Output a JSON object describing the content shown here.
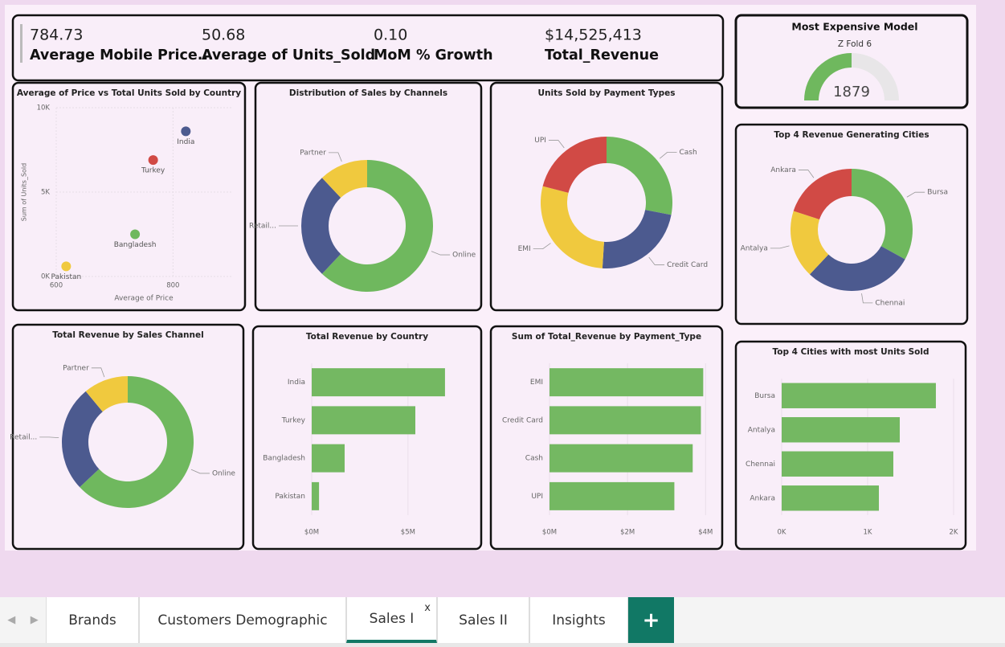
{
  "kpis": [
    {
      "value": "784.73",
      "label": "Average Mobile Price..."
    },
    {
      "value": "50.68",
      "label": "Average of Units_Sold"
    },
    {
      "value": "0.10",
      "label": "MoM % Growth"
    },
    {
      "value": "$14,525,413",
      "label": "Total_Revenue"
    }
  ],
  "gauge": {
    "title": "Most Expensive Model",
    "subtitle": "Z Fold 6",
    "value": 1879
  },
  "chart_data": [
    {
      "type": "scatter",
      "title": "Average of Price vs Total Units Sold by Country",
      "x_label": "Average of Price",
      "y_label": "Sum of Units_Sold",
      "categories": [
        "India",
        "Turkey",
        "Bangladesh",
        "Pakistan"
      ],
      "x": [
        822,
        766,
        735,
        617
      ],
      "values": [
        8600,
        6900,
        2500,
        600
      ],
      "colors": [
        "#4c5a8f",
        "#d14a45",
        "#6fb85e",
        "#f0c93e"
      ],
      "xlim": [
        600,
        900
      ],
      "xticks": [
        600,
        800
      ],
      "ylim": [
        0,
        10000
      ],
      "yticks": [
        {
          "value": 0,
          "label": "0K"
        },
        {
          "value": 5000,
          "label": "5K"
        },
        {
          "value": 10000,
          "label": "10K"
        }
      ],
      "grid": true
    },
    {
      "type": "donut",
      "title": "Distribution of Sales by Channels",
      "categories": [
        "Online",
        "Retail...",
        "Partner"
      ],
      "values": [
        62,
        26,
        12
      ],
      "colors": [
        "#6fb85e",
        "#4c5a8f",
        "#f0c93e"
      ]
    },
    {
      "type": "donut",
      "title": "Units Sold by Payment Types",
      "categories": [
        "Cash",
        "Credit Card",
        "EMI",
        "UPI"
      ],
      "values": [
        28,
        23,
        28,
        21
      ],
      "colors": [
        "#6fb85e",
        "#4c5a8f",
        "#f0c93e",
        "#d14a45"
      ]
    },
    {
      "type": "donut",
      "title": "Top 4 Revenue Generating Cities",
      "categories": [
        "Bursa",
        "Chennai",
        "Antalya",
        "Ankara"
      ],
      "values": [
        33,
        29,
        18,
        20
      ],
      "colors": [
        "#6fb85e",
        "#4c5a8f",
        "#f0c93e",
        "#d14a45"
      ]
    },
    {
      "type": "donut",
      "title": "Total Revenue by Sales Channel",
      "categories": [
        "Online",
        "Retail...",
        "Partner"
      ],
      "values": [
        63,
        26,
        11
      ],
      "colors": [
        "#6fb85e",
        "#4c5a8f",
        "#f0c93e"
      ]
    },
    {
      "type": "bar",
      "orientation": "horizontal",
      "title": "Total Revenue by Country",
      "categories": [
        "India",
        "Turkey",
        "Bangladesh",
        "Pakistan"
      ],
      "values": [
        6920000,
        5380000,
        1710000,
        380000
      ],
      "color": "#74b862",
      "xlim": [
        0,
        8300000
      ],
      "xticks": [
        {
          "value": 0,
          "label": "$0M"
        },
        {
          "value": 5000000,
          "label": "$5M"
        }
      ],
      "grid": true
    },
    {
      "type": "bar",
      "orientation": "horizontal",
      "title": "Sum of Total_Revenue by Payment_Type",
      "categories": [
        "EMI",
        "Credit Card",
        "Cash",
        "UPI"
      ],
      "values": [
        3940000,
        3880000,
        3670000,
        3200000
      ],
      "color": "#74b862",
      "xlim": [
        0,
        4200000
      ],
      "xticks": [
        {
          "value": 0,
          "label": "$0M"
        },
        {
          "value": 2000000,
          "label": "$2M"
        },
        {
          "value": 4000000,
          "label": "$4M"
        }
      ],
      "grid": true
    },
    {
      "type": "bar",
      "orientation": "horizontal",
      "title": "Top 4 Cities with most Units Sold",
      "categories": [
        "Bursa",
        "Antalya",
        "Chennai",
        "Ankara"
      ],
      "values": [
        1794,
        1374,
        1299,
        1131
      ],
      "color": "#74b862",
      "xlim": [
        0,
        2000
      ],
      "xticks": [
        {
          "value": 0,
          "label": "0K"
        },
        {
          "value": 1000,
          "label": "1K"
        },
        {
          "value": 2000,
          "label": "2K"
        }
      ],
      "grid": true
    }
  ],
  "tabs": [
    "Brands",
    "Customers Demographic",
    "Sales I",
    "Sales II",
    "Insights"
  ],
  "close_mark": "x",
  "add_tab": "+"
}
